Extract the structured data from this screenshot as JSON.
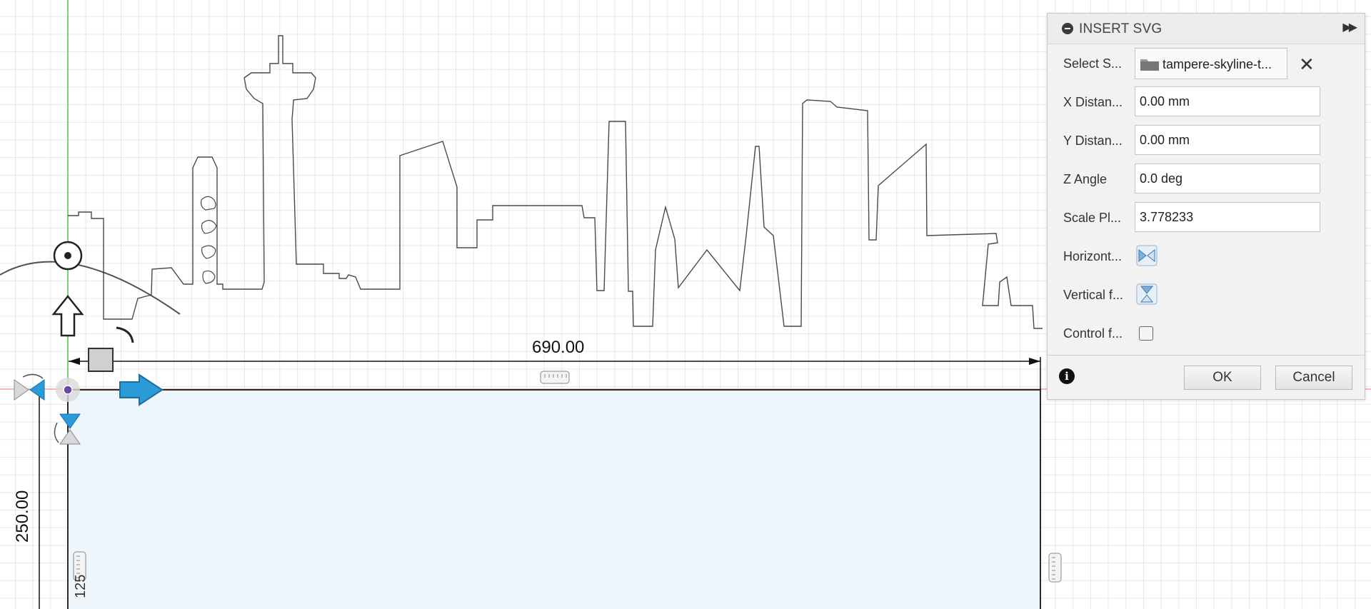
{
  "canvas": {
    "dimension_width": "690.00",
    "dimension_height": "250.00",
    "dimension_secondary": "125"
  },
  "dialog": {
    "title": "INSERT SVG",
    "rows": {
      "select_svg": {
        "label": "Select S...",
        "file_name": "tampere-skyline-t..."
      },
      "x_distance": {
        "label": "X Distan...",
        "value": "0.00 mm"
      },
      "y_distance": {
        "label": "Y Distan...",
        "value": "0.00 mm"
      },
      "z_angle": {
        "label": "Z Angle",
        "value": "0.0 deg"
      },
      "scale": {
        "label": "Scale Pl...",
        "value": "3.778233"
      },
      "horizontal_flip": {
        "label": "Horizont..."
      },
      "vertical_flip": {
        "label": "Vertical f..."
      },
      "control_frame": {
        "label": "Control f...",
        "checked": false
      }
    },
    "ok_label": "OK",
    "cancel_label": "Cancel"
  },
  "colors": {
    "sketch_fill": "#eef6fc",
    "arrow_blue": "#2b9ad9",
    "axis_green": "#58c458",
    "axis_red": "#e25454"
  },
  "icons": [
    "collapse-icon",
    "expand-icon",
    "folder-icon",
    "clear-file-icon",
    "flip-horizontal-icon",
    "flip-vertical-icon",
    "info-icon",
    "move-arrow-up-icon",
    "move-arrow-right-icon",
    "rotate-handle-icon",
    "scale-handle-icon",
    "dimension-handle-icon"
  ]
}
